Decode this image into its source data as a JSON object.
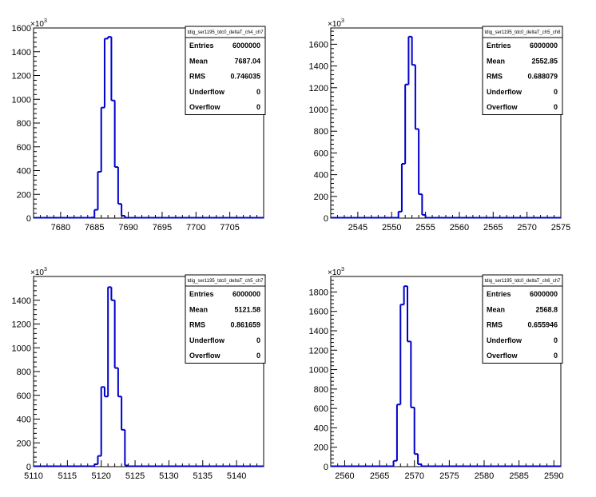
{
  "canvas": {
    "background": "#ffffff",
    "line_color": "#0000cc"
  },
  "chart_data": [
    {
      "type": "histogram",
      "name": "tdig_ser1195_tdc0_deltaT_ch4_ch7",
      "exponent_label": "×10",
      "exponent_power": "3",
      "xlim": [
        7676,
        7710
      ],
      "ylim": [
        0,
        1600
      ],
      "xticks": [
        7680,
        7685,
        7690,
        7695,
        7700,
        7705
      ],
      "yticks": [
        0,
        200,
        400,
        600,
        800,
        1000,
        1200,
        1400,
        1600
      ],
      "bin_width": 0.5,
      "bins": [
        {
          "x": 7684.5,
          "y": 5
        },
        {
          "x": 7685.0,
          "y": 70
        },
        {
          "x": 7685.5,
          "y": 390
        },
        {
          "x": 7686.0,
          "y": 930
        },
        {
          "x": 7686.5,
          "y": 1510
        },
        {
          "x": 7687.0,
          "y": 1525
        },
        {
          "x": 7687.5,
          "y": 990
        },
        {
          "x": 7688.0,
          "y": 430
        },
        {
          "x": 7688.5,
          "y": 120
        },
        {
          "x": 7689.0,
          "y": 20
        }
      ],
      "stats": [
        {
          "label": "Entries",
          "value": "6000000"
        },
        {
          "label": "Mean",
          "value": "7687.04"
        },
        {
          "label": "RMS",
          "value": "0.746035"
        },
        {
          "label": "Underflow",
          "value": "0"
        },
        {
          "label": "Overflow",
          "value": "0"
        }
      ]
    },
    {
      "type": "histogram",
      "name": "tdig_ser1195_tdc0_deltaT_ch5_ch8",
      "exponent_label": "×10",
      "exponent_power": "3",
      "xlim": [
        2541,
        2575
      ],
      "ylim": [
        0,
        1750
      ],
      "xticks": [
        2545,
        2550,
        2555,
        2560,
        2565,
        2570,
        2575
      ],
      "yticks": [
        0,
        200,
        400,
        600,
        800,
        1000,
        1200,
        1400,
        1600
      ],
      "bin_width": 0.5,
      "bins": [
        {
          "x": 2551.0,
          "y": 60
        },
        {
          "x": 2551.5,
          "y": 500
        },
        {
          "x": 2552.0,
          "y": 1230
        },
        {
          "x": 2552.5,
          "y": 1670
        },
        {
          "x": 2553.0,
          "y": 1410
        },
        {
          "x": 2553.5,
          "y": 820
        },
        {
          "x": 2554.0,
          "y": 220
        },
        {
          "x": 2554.5,
          "y": 30
        }
      ],
      "stats": [
        {
          "label": "Entries",
          "value": "6000000"
        },
        {
          "label": "Mean",
          "value": "2552.85"
        },
        {
          "label": "RMS",
          "value": "0.688079"
        },
        {
          "label": "Underflow",
          "value": "0"
        },
        {
          "label": "Overflow",
          "value": "0"
        }
      ]
    },
    {
      "type": "histogram",
      "name": "tdig_ser1195_tdc0_deltaT_ch5_ch7",
      "exponent_label": "×10",
      "exponent_power": "3",
      "xlim": [
        5110,
        5144
      ],
      "ylim": [
        0,
        1600
      ],
      "xticks": [
        5110,
        5115,
        5120,
        5125,
        5130,
        5135,
        5140
      ],
      "yticks": [
        0,
        200,
        400,
        600,
        800,
        1000,
        1200,
        1400
      ],
      "bin_width": 0.5,
      "bins": [
        {
          "x": 5119.0,
          "y": 20
        },
        {
          "x": 5119.5,
          "y": 90
        },
        {
          "x": 5120.0,
          "y": 670
        },
        {
          "x": 5120.5,
          "y": 590
        },
        {
          "x": 5121.0,
          "y": 1510
        },
        {
          "x": 5121.5,
          "y": 1400
        },
        {
          "x": 5122.0,
          "y": 830
        },
        {
          "x": 5122.5,
          "y": 590
        },
        {
          "x": 5123.0,
          "y": 310
        },
        {
          "x": 5123.5,
          "y": 10
        }
      ],
      "stats": [
        {
          "label": "Entries",
          "value": "6000000"
        },
        {
          "label": "Mean",
          "value": "5121.58"
        },
        {
          "label": "RMS",
          "value": "0.861659"
        },
        {
          "label": "Underflow",
          "value": "0"
        },
        {
          "label": "Overflow",
          "value": "0"
        }
      ]
    },
    {
      "type": "histogram",
      "name": "tdig_ser1195_tdc0_deltaT_ch6_ch7",
      "exponent_label": "×10",
      "exponent_power": "3",
      "xlim": [
        2558,
        2591
      ],
      "ylim": [
        0,
        1960
      ],
      "xticks": [
        2560,
        2565,
        2570,
        2575,
        2580,
        2585,
        2590
      ],
      "yticks": [
        0,
        200,
        400,
        600,
        800,
        1000,
        1200,
        1400,
        1600,
        1800
      ],
      "bin_width": 0.5,
      "bins": [
        {
          "x": 2567.0,
          "y": 60
        },
        {
          "x": 2567.5,
          "y": 640
        },
        {
          "x": 2568.0,
          "y": 1670
        },
        {
          "x": 2568.5,
          "y": 1860
        },
        {
          "x": 2569.0,
          "y": 1290
        },
        {
          "x": 2569.5,
          "y": 610
        },
        {
          "x": 2570.0,
          "y": 130
        },
        {
          "x": 2570.5,
          "y": 25
        }
      ],
      "stats": [
        {
          "label": "Entries",
          "value": "6000000"
        },
        {
          "label": "Mean",
          "value": "2568.8"
        },
        {
          "label": "RMS",
          "value": "0.655946"
        },
        {
          "label": "Underflow",
          "value": "0"
        },
        {
          "label": "Overflow",
          "value": "0"
        }
      ]
    }
  ]
}
